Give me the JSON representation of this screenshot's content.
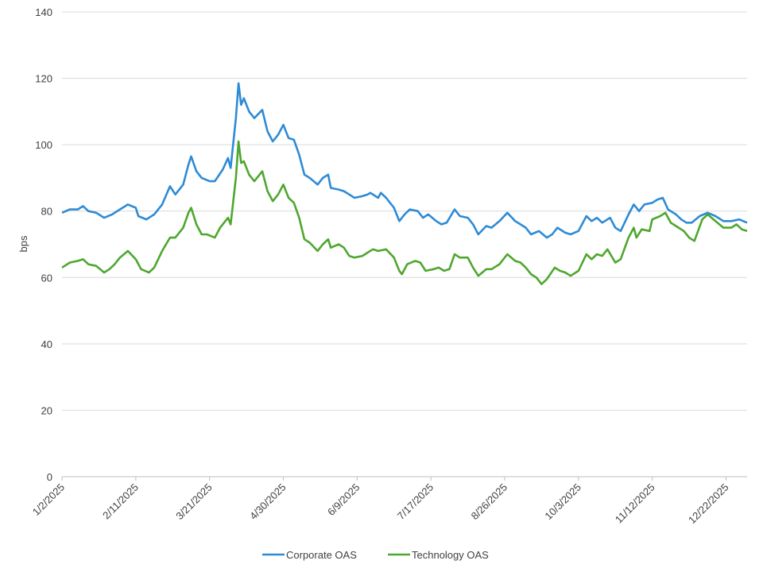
{
  "chart_data": {
    "type": "line",
    "title": "",
    "xlabel": "",
    "ylabel": "bps",
    "ylim": [
      0,
      140
    ],
    "yticks": [
      0,
      20,
      40,
      60,
      80,
      100,
      120,
      140
    ],
    "x_unit": "trading days since 1/2/2025",
    "xlim": [
      0,
      260
    ],
    "xticks": [
      {
        "x": 0,
        "label": "1/2/2025"
      },
      {
        "x": 28,
        "label": "2/11/2025"
      },
      {
        "x": 56,
        "label": "3/21/2025"
      },
      {
        "x": 84,
        "label": "4/30/2025"
      },
      {
        "x": 112,
        "label": "6/9/2025"
      },
      {
        "x": 140,
        "label": "7/17/2025"
      },
      {
        "x": 168,
        "label": "8/26/2025"
      },
      {
        "x": 196,
        "label": "10/3/2025"
      },
      {
        "x": 224,
        "label": "11/12/2025"
      },
      {
        "x": 252,
        "label": "12/22/2025"
      }
    ],
    "grid": "horizontal",
    "legend": "bottom-center",
    "series": [
      {
        "name": "Corporate OAS",
        "color": "#2e8bd6",
        "points": [
          [
            0,
            79.5
          ],
          [
            3,
            80.5
          ],
          [
            6,
            80.5
          ],
          [
            8,
            81.5
          ],
          [
            10,
            80
          ],
          [
            13,
            79.5
          ],
          [
            16,
            78
          ],
          [
            19,
            79
          ],
          [
            22,
            80.5
          ],
          [
            25,
            82
          ],
          [
            28,
            81
          ],
          [
            29,
            78.5
          ],
          [
            32,
            77.5
          ],
          [
            35,
            79
          ],
          [
            38,
            82
          ],
          [
            41,
            87.5
          ],
          [
            43,
            85
          ],
          [
            46,
            88
          ],
          [
            48,
            94
          ],
          [
            49,
            96.5
          ],
          [
            51,
            92
          ],
          [
            53,
            90
          ],
          [
            56,
            89
          ],
          [
            58,
            89
          ],
          [
            61,
            92.5
          ],
          [
            63,
            96
          ],
          [
            64,
            93
          ],
          [
            66,
            108
          ],
          [
            67,
            118.5
          ],
          [
            68,
            112
          ],
          [
            69,
            114
          ],
          [
            71,
            110
          ],
          [
            73,
            108
          ],
          [
            76,
            110.5
          ],
          [
            78,
            104
          ],
          [
            80,
            101
          ],
          [
            82,
            103
          ],
          [
            84,
            106
          ],
          [
            86,
            102
          ],
          [
            88,
            101.5
          ],
          [
            90,
            97
          ],
          [
            92,
            91
          ],
          [
            94,
            90
          ],
          [
            97,
            88
          ],
          [
            99,
            90
          ],
          [
            101,
            91
          ],
          [
            102,
            87
          ],
          [
            105,
            86.5
          ],
          [
            107,
            86
          ],
          [
            109,
            85
          ],
          [
            111,
            84
          ],
          [
            114,
            84.5
          ],
          [
            116,
            85
          ],
          [
            117,
            85.5
          ],
          [
            120,
            84
          ],
          [
            121,
            85.5
          ],
          [
            123,
            84
          ],
          [
            126,
            81
          ],
          [
            128,
            77
          ],
          [
            130,
            79
          ],
          [
            132,
            80.5
          ],
          [
            135,
            80
          ],
          [
            137,
            78
          ],
          [
            139,
            79
          ],
          [
            142,
            77
          ],
          [
            144,
            76
          ],
          [
            146,
            76.5
          ],
          [
            149,
            80.5
          ],
          [
            151,
            78.5
          ],
          [
            154,
            78
          ],
          [
            156,
            76
          ],
          [
            158,
            73
          ],
          [
            161,
            75.5
          ],
          [
            163,
            75
          ],
          [
            166,
            77
          ],
          [
            169,
            79.5
          ],
          [
            172,
            77
          ],
          [
            174,
            76
          ],
          [
            176,
            75
          ],
          [
            178,
            73
          ],
          [
            181,
            74
          ],
          [
            184,
            72
          ],
          [
            186,
            73
          ],
          [
            188,
            75
          ],
          [
            191,
            73.5
          ],
          [
            193,
            73
          ],
          [
            196,
            74
          ],
          [
            199,
            78.5
          ],
          [
            201,
            77
          ],
          [
            203,
            78
          ],
          [
            205,
            76.5
          ],
          [
            208,
            78
          ],
          [
            210,
            75
          ],
          [
            212,
            74
          ],
          [
            215,
            79
          ],
          [
            217,
            82
          ],
          [
            219,
            80
          ],
          [
            221,
            82
          ],
          [
            224,
            82.5
          ],
          [
            226,
            83.5
          ],
          [
            228,
            84
          ],
          [
            230,
            80.5
          ],
          [
            233,
            79
          ],
          [
            235,
            77.5
          ],
          [
            237,
            76.5
          ],
          [
            239,
            76.5
          ],
          [
            242,
            78.5
          ],
          [
            245,
            79.5
          ],
          [
            248,
            78.5
          ],
          [
            251,
            77
          ],
          [
            254,
            77
          ],
          [
            257,
            77.5
          ],
          [
            260,
            76.5
          ]
        ]
      },
      {
        "name": "Technology OAS",
        "color": "#4ea72e",
        "points": [
          [
            0,
            63
          ],
          [
            3,
            64.5
          ],
          [
            6,
            65
          ],
          [
            8,
            65.5
          ],
          [
            10,
            64
          ],
          [
            13,
            63.5
          ],
          [
            16,
            61.5
          ],
          [
            18,
            62.5
          ],
          [
            20,
            64
          ],
          [
            22,
            66
          ],
          [
            25,
            68
          ],
          [
            28,
            65.5
          ],
          [
            30,
            62.5
          ],
          [
            33,
            61.5
          ],
          [
            35,
            63
          ],
          [
            38,
            68
          ],
          [
            41,
            72
          ],
          [
            43,
            72
          ],
          [
            46,
            75
          ],
          [
            48,
            79.5
          ],
          [
            49,
            81
          ],
          [
            51,
            76
          ],
          [
            53,
            73
          ],
          [
            55,
            73
          ],
          [
            58,
            72
          ],
          [
            60,
            75
          ],
          [
            63,
            78
          ],
          [
            64,
            76
          ],
          [
            66,
            90
          ],
          [
            67,
            101
          ],
          [
            68,
            94.5
          ],
          [
            69,
            95
          ],
          [
            71,
            91
          ],
          [
            73,
            89
          ],
          [
            76,
            92
          ],
          [
            78,
            86
          ],
          [
            80,
            83
          ],
          [
            82,
            85
          ],
          [
            84,
            88
          ],
          [
            86,
            84
          ],
          [
            88,
            82.5
          ],
          [
            90,
            78
          ],
          [
            92,
            71.5
          ],
          [
            94,
            70.5
          ],
          [
            97,
            68
          ],
          [
            99,
            70
          ],
          [
            101,
            71.5
          ],
          [
            102,
            69
          ],
          [
            105,
            70
          ],
          [
            107,
            69
          ],
          [
            109,
            66.5
          ],
          [
            111,
            66
          ],
          [
            114,
            66.5
          ],
          [
            116,
            67.5
          ],
          [
            118,
            68.5
          ],
          [
            120,
            68
          ],
          [
            123,
            68.5
          ],
          [
            126,
            66
          ],
          [
            128,
            62
          ],
          [
            129,
            61
          ],
          [
            131,
            64
          ],
          [
            134,
            65
          ],
          [
            136,
            64.5
          ],
          [
            138,
            62
          ],
          [
            141,
            62.5
          ],
          [
            143,
            63
          ],
          [
            145,
            62
          ],
          [
            147,
            62.5
          ],
          [
            149,
            67
          ],
          [
            151,
            66
          ],
          [
            154,
            66
          ],
          [
            156,
            63
          ],
          [
            158,
            60.5
          ],
          [
            161,
            62.5
          ],
          [
            163,
            62.5
          ],
          [
            166,
            64
          ],
          [
            169,
            67
          ],
          [
            172,
            65
          ],
          [
            174,
            64.5
          ],
          [
            176,
            63
          ],
          [
            178,
            61
          ],
          [
            180,
            60
          ],
          [
            182,
            58
          ],
          [
            184,
            59.5
          ],
          [
            187,
            63
          ],
          [
            189,
            62
          ],
          [
            191,
            61.5
          ],
          [
            193,
            60.5
          ],
          [
            196,
            62
          ],
          [
            199,
            67
          ],
          [
            201,
            65.5
          ],
          [
            203,
            67
          ],
          [
            205,
            66.5
          ],
          [
            207,
            68.5
          ],
          [
            210,
            64.5
          ],
          [
            212,
            65.5
          ],
          [
            215,
            72
          ],
          [
            217,
            75
          ],
          [
            218,
            72
          ],
          [
            220,
            74.5
          ],
          [
            223,
            74
          ],
          [
            224,
            77.5
          ],
          [
            227,
            78.5
          ],
          [
            229,
            79.5
          ],
          [
            231,
            76.5
          ],
          [
            233,
            75.5
          ],
          [
            236,
            74
          ],
          [
            238,
            72
          ],
          [
            240,
            71
          ],
          [
            243,
            77.5
          ],
          [
            245,
            79
          ],
          [
            248,
            77
          ],
          [
            251,
            75
          ],
          [
            254,
            75
          ],
          [
            256,
            76
          ],
          [
            258,
            74.5
          ],
          [
            260,
            74
          ]
        ]
      }
    ]
  }
}
